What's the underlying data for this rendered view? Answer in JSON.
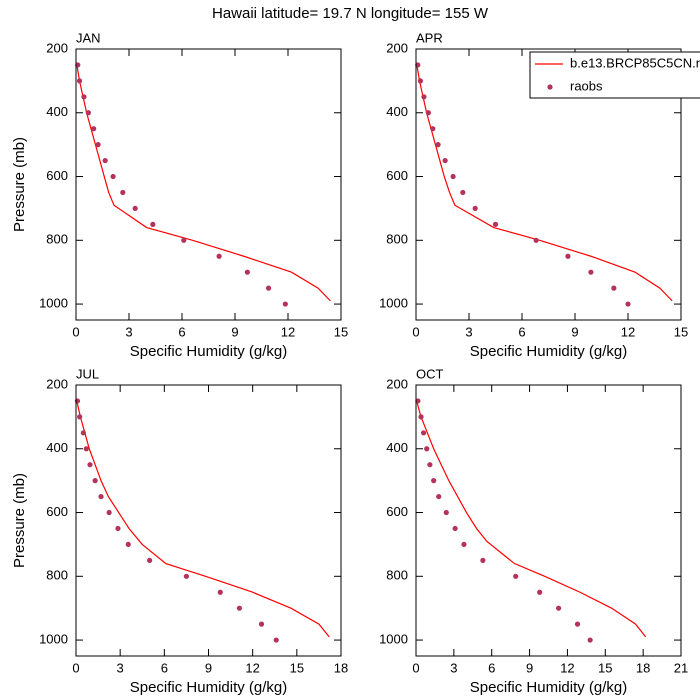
{
  "title": "Hawaii  latitude= 19.7 N longitude= 155 W",
  "chart_data": [
    {
      "type": "line",
      "title": "JAN",
      "x_label": "Specific Humidity (g/kg)",
      "y_label": "Pressure (mb)",
      "xlim": [
        0,
        15
      ],
      "xticks": [
        0,
        3,
        6,
        9,
        12,
        15
      ],
      "ylim": [
        1050,
        200
      ],
      "yticks": [
        200,
        400,
        600,
        800,
        1000
      ],
      "series": [
        {
          "color": "#ff0000",
          "mode": "line",
          "x": [
            0.05,
            0.2,
            0.4,
            0.6,
            0.85,
            1.1,
            1.35,
            1.6,
            1.85,
            2.15,
            4.0,
            6.6,
            9.5,
            12.2,
            13.7,
            14.4
          ],
          "y": [
            250,
            300,
            350,
            400,
            450,
            500,
            550,
            600,
            650,
            690,
            760,
            800,
            850,
            900,
            950,
            990
          ]
        },
        {
          "color": "#b5325a",
          "mode": "markers",
          "x": [
            0.1,
            0.2,
            0.45,
            0.7,
            1.0,
            1.25,
            1.65,
            2.1,
            2.65,
            3.35,
            4.35,
            6.1,
            8.1,
            9.7,
            10.9,
            11.85
          ],
          "y": [
            250,
            300,
            350,
            400,
            450,
            500,
            550,
            600,
            650,
            700,
            750,
            800,
            850,
            900,
            950,
            1000
          ]
        }
      ]
    },
    {
      "type": "line",
      "title": "APR",
      "x_label": "Specific Humidity (g/kg)",
      "xlim": [
        0,
        15
      ],
      "xticks": [
        0,
        3,
        6,
        9,
        12,
        15
      ],
      "ylim": [
        1050,
        200
      ],
      "yticks": [
        200,
        400,
        600,
        800,
        1000
      ],
      "legend": "top-right",
      "series": [
        {
          "name": "b.e13.BRCP85C5CN.n",
          "color": "#ff0000",
          "mode": "line",
          "x": [
            0.05,
            0.2,
            0.4,
            0.6,
            0.85,
            1.1,
            1.35,
            1.6,
            1.9,
            2.2,
            4.4,
            7.0,
            9.9,
            12.4,
            13.8,
            14.5
          ],
          "y": [
            250,
            300,
            350,
            400,
            450,
            500,
            550,
            600,
            650,
            690,
            760,
            800,
            850,
            900,
            950,
            990
          ]
        },
        {
          "name": "raobs",
          "color": "#b5325a",
          "mode": "markers",
          "x": [
            0.1,
            0.25,
            0.45,
            0.7,
            0.95,
            1.25,
            1.65,
            2.1,
            2.65,
            3.35,
            4.5,
            6.8,
            8.6,
            9.9,
            11.2,
            12.0
          ],
          "y": [
            250,
            300,
            350,
            400,
            450,
            500,
            550,
            600,
            650,
            700,
            750,
            800,
            850,
            900,
            950,
            1000
          ]
        }
      ]
    },
    {
      "type": "line",
      "title": "JUL",
      "x_label": "Specific Humidity (g/kg)",
      "y_label": "Pressure (mb)",
      "xlim": [
        0,
        18
      ],
      "xticks": [
        0,
        3,
        6,
        9,
        12,
        15,
        18
      ],
      "ylim": [
        1050,
        200
      ],
      "yticks": [
        200,
        400,
        600,
        800,
        1000
      ],
      "series": [
        {
          "color": "#ff0000",
          "mode": "line",
          "x": [
            0.05,
            0.3,
            0.6,
            0.9,
            1.3,
            1.7,
            2.2,
            2.9,
            3.6,
            4.5,
            6.1,
            8.8,
            12.0,
            14.6,
            16.5,
            17.2
          ],
          "y": [
            250,
            300,
            350,
            400,
            450,
            500,
            550,
            600,
            650,
            700,
            760,
            800,
            850,
            900,
            950,
            990
          ]
        },
        {
          "color": "#b5325a",
          "mode": "markers",
          "x": [
            0.1,
            0.25,
            0.5,
            0.7,
            0.95,
            1.3,
            1.7,
            2.25,
            2.85,
            3.55,
            5.0,
            7.5,
            9.8,
            11.1,
            12.6,
            13.6
          ],
          "y": [
            250,
            300,
            350,
            400,
            450,
            500,
            550,
            600,
            650,
            700,
            750,
            800,
            850,
            900,
            950,
            1000
          ]
        }
      ]
    },
    {
      "type": "line",
      "title": "OCT",
      "x_label": "Specific Humidity (g/kg)",
      "xlim": [
        0,
        21
      ],
      "xticks": [
        0,
        3,
        6,
        9,
        12,
        15,
        18,
        21
      ],
      "ylim": [
        1050,
        200
      ],
      "yticks": [
        200,
        400,
        600,
        800,
        1000
      ],
      "series": [
        {
          "color": "#ff0000",
          "mode": "line",
          "x": [
            0.05,
            0.4,
            0.9,
            1.4,
            2.0,
            2.6,
            3.3,
            4.0,
            4.8,
            5.6,
            7.8,
            10.2,
            13.0,
            15.5,
            17.4,
            18.2
          ],
          "y": [
            250,
            300,
            350,
            400,
            450,
            500,
            550,
            600,
            650,
            690,
            760,
            800,
            850,
            900,
            950,
            990
          ]
        },
        {
          "color": "#b5325a",
          "mode": "markers",
          "x": [
            0.15,
            0.4,
            0.6,
            0.85,
            1.1,
            1.4,
            1.8,
            2.4,
            3.1,
            3.8,
            5.3,
            7.9,
            9.8,
            11.3,
            12.8,
            13.8
          ],
          "y": [
            250,
            300,
            350,
            400,
            450,
            500,
            550,
            600,
            650,
            700,
            750,
            800,
            850,
            900,
            950,
            1000
          ]
        }
      ]
    }
  ]
}
